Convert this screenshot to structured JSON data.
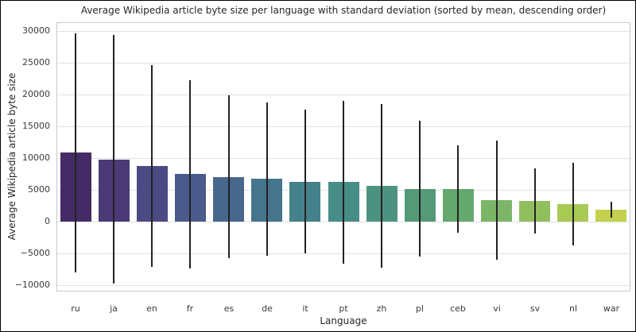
{
  "chart_data": {
    "type": "bar",
    "title": "Average Wikipedia article byte size per language with standard deviation (sorted by mean, descending order)",
    "xlabel": "Language",
    "ylabel": "Average Wikipedia article byte size",
    "categories": [
      "ru",
      "ja",
      "en",
      "fr",
      "es",
      "de",
      "it",
      "pt",
      "zh",
      "pl",
      "ceb",
      "vi",
      "sv",
      "nl",
      "war"
    ],
    "series": [
      {
        "name": "mean article byte size",
        "values": [
          10900,
          9800,
          8700,
          7500,
          7050,
          6700,
          6250,
          6200,
          5600,
          5150,
          5100,
          3400,
          3300,
          2800,
          1850
        ]
      },
      {
        "name": "standard deviation",
        "values": [
          18800,
          19600,
          15900,
          14800,
          12850,
          12100,
          11350,
          12800,
          12900,
          10700,
          6900,
          9400,
          5100,
          6500,
          1250
        ]
      }
    ],
    "error_bars": true,
    "ylim": [
      -11000,
      31400
    ],
    "yticks": [
      {
        "value": 30000,
        "label": "30000"
      },
      {
        "value": 25000,
        "label": "25000"
      },
      {
        "value": 20000,
        "label": "20000"
      },
      {
        "value": 15000,
        "label": "15000"
      },
      {
        "value": 10000,
        "label": "10000"
      },
      {
        "value": 5000,
        "label": "5000"
      },
      {
        "value": 0,
        "label": "0"
      },
      {
        "value": -5000,
        "label": "−5000"
      },
      {
        "value": -10000,
        "label": "−10000"
      }
    ],
    "grid": "horizontal",
    "legend": "none",
    "palette": "viridis-desaturated",
    "bar_colors": [
      "#452b66",
      "#4b3a76",
      "#4c4a82",
      "#4a5a8b",
      "#48678d",
      "#45758c",
      "#44818b",
      "#468c87",
      "#4d9181",
      "#559a77",
      "#64a86f",
      "#7db568",
      "#92bf5e",
      "#a9c955",
      "#c3d14c"
    ],
    "error_bar_color": "#222222",
    "gridline_color": "#e2e2e2",
    "background_color": "#ffffff"
  }
}
